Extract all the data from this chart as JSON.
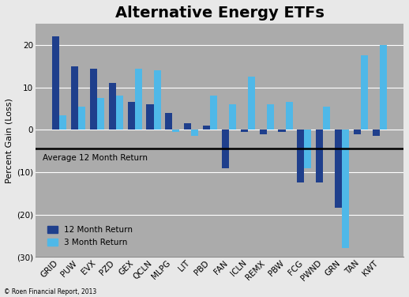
{
  "title": "Alternative Energy ETFs",
  "categories": [
    "GRID",
    "PUW",
    "EVX",
    "PZD",
    "GEX",
    "QCLN",
    "MLPG",
    "LIT",
    "PBD",
    "FAN",
    "ICLN",
    "REMX",
    "PBW",
    "FCG",
    "PWND",
    "GRN",
    "TAN",
    "KWT"
  ],
  "return_12m": [
    22,
    15,
    14.5,
    11,
    6.5,
    6,
    4,
    1.5,
    1,
    -9,
    -0.5,
    -1,
    -0.5,
    -12.5,
    -12.5,
    -18.5,
    -1,
    -1.5
  ],
  "return_3m": [
    3.5,
    5.5,
    7.5,
    8,
    14.5,
    14,
    -0.5,
    -1.5,
    8,
    6,
    12.5,
    6,
    6.5,
    -9,
    5.5,
    -28,
    17.5,
    20
  ],
  "avg_12m_line": -4.5,
  "color_12m": "#1F3F8C",
  "color_3m": "#4FB8E8",
  "fig_bg_color": "#E8E8E8",
  "ax_bg_color": "#ABABAB",
  "ylabel": "Percent Gain (Loss)",
  "ylim_min": -30,
  "ylim_max": 25,
  "yticks": [
    -30,
    -20,
    -10,
    0,
    10,
    20
  ],
  "ytick_labels": [
    "(30)",
    "(20)",
    "(10)",
    "0",
    "10",
    "20"
  ],
  "avg_label": "Average 12 Month Return",
  "legend_12m": "12 Month Return",
  "legend_3m": "3 Month Return",
  "footer": "© Roen Financial Report, 2013",
  "title_fontsize": 14,
  "axis_fontsize": 7.5,
  "ylabel_fontsize": 8,
  "legend_fontsize": 7.5,
  "footer_fontsize": 5.5,
  "avg_label_fontsize": 7.5,
  "bar_width": 0.38
}
